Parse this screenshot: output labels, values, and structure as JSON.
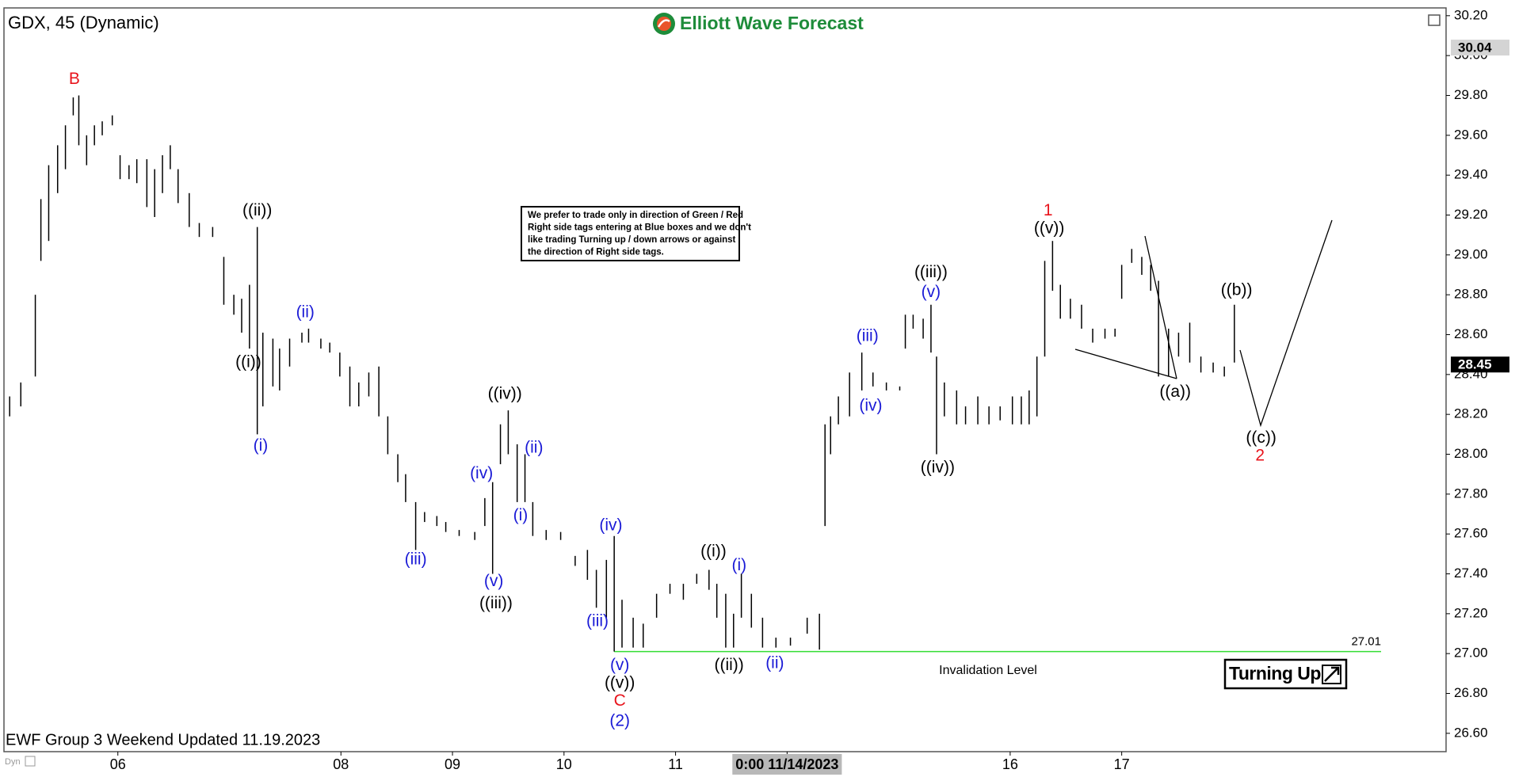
{
  "chart_data": {
    "type": "highlow",
    "title": "GDX, 45 (Dynamic)",
    "brand": "Elliott Wave Forecast",
    "footer": "EWF Group 3 Weekend Updated 11.19.2023",
    "corner_tag": "Dyn",
    "notice": [
      "We prefer to trade only in direction of Green / Red",
      "Right side tags entering at Blue boxes and we don't",
      "like trading Turning up / down arrows or against",
      "the direction of Right side tags."
    ],
    "badge": "Turning Up",
    "color": "#000000",
    "x": [
      -0.97,
      -0.87,
      -0.74,
      -0.69,
      -0.62,
      -0.54,
      -0.47,
      -0.4,
      -0.35,
      -0.28,
      -0.21,
      -0.14,
      -0.05,
      0.02,
      0.1,
      0.17,
      0.26,
      0.33,
      0.4,
      0.47,
      0.54,
      0.64,
      0.73,
      0.85,
      0.95,
      1.04,
      1.11,
      1.18,
      1.25,
      1.3,
      1.39,
      1.45,
      1.54,
      1.65,
      1.71,
      1.82,
      1.9,
      1.99,
      2.08,
      2.16,
      2.25,
      2.34,
      2.42,
      2.51,
      2.58,
      2.67,
      2.75,
      2.86,
      2.94,
      3.06,
      3.2,
      3.29,
      3.36,
      3.43,
      3.5,
      3.58,
      3.65,
      3.72,
      3.84,
      3.97,
      4.1,
      4.21,
      4.29,
      4.38,
      4.45,
      4.52,
      4.62,
      4.71,
      4.83,
      4.95,
      5.07,
      5.19,
      5.3,
      5.37,
      5.45,
      5.52,
      5.59,
      5.68,
      5.78,
      5.9,
      6.03,
      6.18,
      6.29,
      6.34,
      6.39,
      6.46,
      6.56,
      6.67,
      6.77,
      6.89,
      7.01,
      7.06,
      7.13,
      7.22,
      7.29,
      7.34,
      7.41,
      7.52,
      7.6,
      7.71,
      7.81,
      7.91,
      8.02,
      8.1,
      8.17,
      8.24,
      8.31,
      8.38,
      8.45,
      8.54,
      8.64,
      8.74,
      8.85,
      8.94,
      9.0,
      9.09,
      9.18,
      9.26,
      9.33,
      9.42,
      9.51,
      9.61,
      9.71,
      9.82,
      9.92,
      10.01
    ],
    "high": [
      28.29,
      28.36,
      28.8,
      29.28,
      29.45,
      29.55,
      29.65,
      29.79,
      29.8,
      29.6,
      29.65,
      29.67,
      29.7,
      29.5,
      29.45,
      29.48,
      29.48,
      29.43,
      29.5,
      29.55,
      29.43,
      29.31,
      29.16,
      29.14,
      28.99,
      28.8,
      28.78,
      28.85,
      29.14,
      28.61,
      28.58,
      28.53,
      28.58,
      28.61,
      28.63,
      28.58,
      28.56,
      28.51,
      28.44,
      28.36,
      28.41,
      28.44,
      28.19,
      28.0,
      27.9,
      27.76,
      27.71,
      27.69,
      27.66,
      27.62,
      27.61,
      27.78,
      27.86,
      28.15,
      28.22,
      28.05,
      28.0,
      27.76,
      27.62,
      27.61,
      27.49,
      27.52,
      27.42,
      27.47,
      27.59,
      27.27,
      27.18,
      27.15,
      27.3,
      27.35,
      27.35,
      27.4,
      27.42,
      27.35,
      27.3,
      27.2,
      27.4,
      27.3,
      27.18,
      27.08,
      27.08,
      27.18,
      27.2,
      28.15,
      28.19,
      28.29,
      28.41,
      28.51,
      28.41,
      28.36,
      28.34,
      28.7,
      28.7,
      28.68,
      28.75,
      28.49,
      28.36,
      28.32,
      28.24,
      28.29,
      28.24,
      28.24,
      28.29,
      28.29,
      28.32,
      28.49,
      28.97,
      29.07,
      28.85,
      28.78,
      28.75,
      28.63,
      28.63,
      28.63,
      28.95,
      29.03,
      28.99,
      28.95,
      28.87,
      28.63,
      28.61,
      28.66,
      28.49,
      28.46,
      28.44,
      28.75
    ],
    "low": [
      28.19,
      28.24,
      28.39,
      28.97,
      29.07,
      29.31,
      29.43,
      29.7,
      29.55,
      29.45,
      29.55,
      29.6,
      29.65,
      29.38,
      29.38,
      29.36,
      29.24,
      29.19,
      29.31,
      29.43,
      29.26,
      29.14,
      29.09,
      29.09,
      28.75,
      28.7,
      28.61,
      28.53,
      28.1,
      28.24,
      28.34,
      28.32,
      28.44,
      28.56,
      28.56,
      28.53,
      28.51,
      28.39,
      28.24,
      28.24,
      28.29,
      28.19,
      28.0,
      27.86,
      27.76,
      27.52,
      27.66,
      27.64,
      27.61,
      27.59,
      27.57,
      27.64,
      27.4,
      27.95,
      28.0,
      27.76,
      27.76,
      27.59,
      27.57,
      27.57,
      27.44,
      27.37,
      27.23,
      27.18,
      27.01,
      27.03,
      27.03,
      27.03,
      27.18,
      27.3,
      27.27,
      27.35,
      27.32,
      27.18,
      27.03,
      27.03,
      27.18,
      27.13,
      27.03,
      27.03,
      27.04,
      27.1,
      27.02,
      27.64,
      28.0,
      28.15,
      28.19,
      28.32,
      28.34,
      28.32,
      28.32,
      28.53,
      28.63,
      28.58,
      28.51,
      28.0,
      28.19,
      28.15,
      28.15,
      28.15,
      28.15,
      28.17,
      28.15,
      28.15,
      28.15,
      28.19,
      28.49,
      28.82,
      28.68,
      28.68,
      28.63,
      28.56,
      28.58,
      28.59,
      28.78,
      28.96,
      28.9,
      28.82,
      28.39,
      28.39,
      28.49,
      28.46,
      28.41,
      28.41,
      28.39,
      28.46
    ],
    "xlim": [
      -1.014,
      11.908
    ],
    "xticks": [
      {
        "value": 0,
        "label": "06"
      },
      {
        "value": 2,
        "label": "08"
      },
      {
        "value": 3,
        "label": "09"
      },
      {
        "value": 4,
        "label": "10"
      },
      {
        "value": 5,
        "label": "11"
      },
      {
        "value": 6,
        "label": "0:00 11/14/2023",
        "highlight": true
      },
      {
        "value": 8,
        "label": "16"
      },
      {
        "value": 9,
        "label": "17"
      }
    ],
    "ylim": [
      26.508,
      30.239
    ],
    "yticks": [
      {
        "value": 26.6,
        "label": "26.60"
      },
      {
        "value": 26.8,
        "label": "26.80"
      },
      {
        "value": 27.0,
        "label": "27.00"
      },
      {
        "value": 27.2,
        "label": "27.20"
      },
      {
        "value": 27.4,
        "label": "27.40"
      },
      {
        "value": 27.6,
        "label": "27.60"
      },
      {
        "value": 27.8,
        "label": "27.80"
      },
      {
        "value": 28.0,
        "label": "28.00"
      },
      {
        "value": 28.2,
        "label": "28.20"
      },
      {
        "value": 28.4,
        "label": "28.40"
      },
      {
        "value": 28.6,
        "label": "28.60"
      },
      {
        "value": 28.8,
        "label": "28.80"
      },
      {
        "value": 29.0,
        "label": "29.00"
      },
      {
        "value": 29.2,
        "label": "29.20"
      },
      {
        "value": 29.4,
        "label": "29.40"
      },
      {
        "value": 29.6,
        "label": "29.60"
      },
      {
        "value": 29.8,
        "label": "29.80"
      },
      {
        "value": 30.0,
        "label": "30.00"
      },
      {
        "value": 30.2,
        "label": "30.20"
      }
    ],
    "price_markers": [
      {
        "value": 30.04,
        "color": "#d4d4d4",
        "text_color": "#000000"
      },
      {
        "value": 28.45,
        "color": "#000000",
        "text_color": "#ffffff"
      }
    ],
    "invalidation": {
      "value": 27.01,
      "label": "Invalidation Level",
      "color": "#33dd33",
      "x_start": 4.45
    },
    "annotations": [
      {
        "text": "B",
        "x": -0.39,
        "y": 29.88,
        "color": "#e8141c"
      },
      {
        "text": "((ii))",
        "x": 1.25,
        "y": 29.22,
        "color": "#000000"
      },
      {
        "text": "((i))",
        "x": 1.17,
        "y": 28.46,
        "color": "#000000"
      },
      {
        "text": "(i)",
        "x": 1.28,
        "y": 28.04,
        "color": "#1a1ad6"
      },
      {
        "text": "(ii)",
        "x": 1.68,
        "y": 28.71,
        "color": "#1a1ad6"
      },
      {
        "text": "(iii)",
        "x": 2.67,
        "y": 27.47,
        "color": "#1a1ad6"
      },
      {
        "text": "((iv))",
        "x": 3.47,
        "y": 28.3,
        "color": "#000000"
      },
      {
        "text": "(iv)",
        "x": 3.26,
        "y": 27.9,
        "color": "#1a1ad6"
      },
      {
        "text": "(ii)",
        "x": 3.73,
        "y": 28.03,
        "color": "#1a1ad6"
      },
      {
        "text": "(i)",
        "x": 3.61,
        "y": 27.69,
        "color": "#1a1ad6"
      },
      {
        "text": "(v)",
        "x": 3.37,
        "y": 27.36,
        "color": "#1a1ad6"
      },
      {
        "text": "((iii))",
        "x": 3.39,
        "y": 27.25,
        "color": "#000000"
      },
      {
        "text": "(iv)",
        "x": 4.42,
        "y": 27.64,
        "color": "#1a1ad6"
      },
      {
        "text": "(iii)",
        "x": 4.3,
        "y": 27.16,
        "color": "#1a1ad6"
      },
      {
        "text": "(v)",
        "x": 4.5,
        "y": 26.94,
        "color": "#1a1ad6"
      },
      {
        "text": "((v))",
        "x": 4.5,
        "y": 26.85,
        "color": "#000000"
      },
      {
        "text": "C",
        "x": 4.5,
        "y": 26.76,
        "color": "#e8141c"
      },
      {
        "text": "(2)",
        "x": 4.5,
        "y": 26.66,
        "color": "#1a1ad6"
      },
      {
        "text": "((i))",
        "x": 5.34,
        "y": 27.51,
        "color": "#000000"
      },
      {
        "text": "(i)",
        "x": 5.57,
        "y": 27.44,
        "color": "#1a1ad6"
      },
      {
        "text": "((ii))",
        "x": 5.48,
        "y": 26.94,
        "color": "#000000"
      },
      {
        "text": "(ii)",
        "x": 5.89,
        "y": 26.95,
        "color": "#1a1ad6"
      },
      {
        "text": "(iii)",
        "x": 6.72,
        "y": 28.59,
        "color": "#1a1ad6"
      },
      {
        "text": "(iv)",
        "x": 6.75,
        "y": 28.24,
        "color": "#1a1ad6"
      },
      {
        "text": "((iii))",
        "x": 7.29,
        "y": 28.91,
        "color": "#000000"
      },
      {
        "text": "(v)",
        "x": 7.29,
        "y": 28.81,
        "color": "#1a1ad6"
      },
      {
        "text": "((iv))",
        "x": 7.35,
        "y": 27.93,
        "color": "#000000"
      },
      {
        "text": "1",
        "x": 8.34,
        "y": 29.22,
        "color": "#e8141c"
      },
      {
        "text": "((v))",
        "x": 8.35,
        "y": 29.13,
        "color": "#000000"
      },
      {
        "text": "((a))",
        "x": 9.48,
        "y": 28.31,
        "color": "#000000"
      },
      {
        "text": "((b))",
        "x": 10.03,
        "y": 28.82,
        "color": "#000000"
      },
      {
        "text": "((c))",
        "x": 10.25,
        "y": 28.08,
        "color": "#000000"
      },
      {
        "text": "2",
        "x": 10.24,
        "y": 27.99,
        "color": "#e8141c"
      }
    ]
  }
}
